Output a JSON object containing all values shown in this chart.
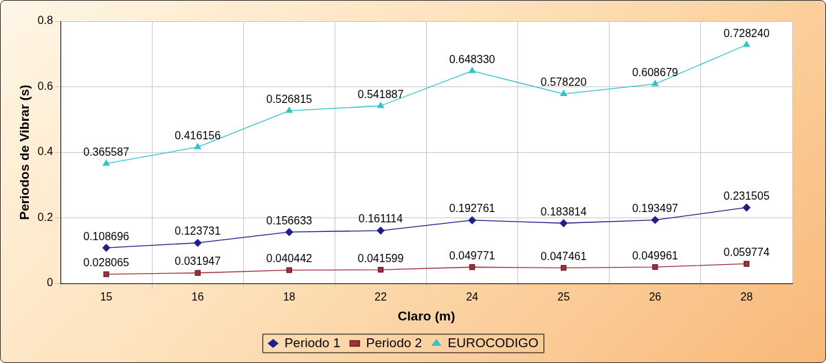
{
  "chart_data": {
    "type": "line",
    "xlabel": "Claro (m)",
    "ylabel": "Periodos de Vibrar (s)",
    "categories": [
      "15",
      "16",
      "18",
      "22",
      "24",
      "25",
      "26",
      "28"
    ],
    "series": [
      {
        "name": "Periodo 1",
        "color": "#1f1f8c",
        "marker": "diamond",
        "values": [
          0.108696,
          0.123731,
          0.156633,
          0.161114,
          0.192761,
          0.183814,
          0.193497,
          0.231505
        ]
      },
      {
        "name": "Periodo 2",
        "color": "#a0303c",
        "marker": "square",
        "values": [
          0.028065,
          0.031947,
          0.040442,
          0.041599,
          0.049771,
          0.047461,
          0.049961,
          0.059774
        ]
      },
      {
        "name": "EUROCODIGO",
        "color": "#33c4c8",
        "marker": "triangle",
        "values": [
          0.365587,
          0.416156,
          0.526815,
          0.541887,
          0.64833,
          0.57822,
          0.608679,
          0.72824
        ],
        "value_labels": [
          "0.365587",
          "0.416156",
          "0.526815",
          "0.541887",
          "0.648330",
          "0.578220",
          "0.608679",
          "0.728240"
        ]
      }
    ],
    "ylim": [
      0,
      0.8
    ],
    "yticks": [
      0,
      0.2,
      0.4,
      0.6,
      0.8
    ],
    "grid": true,
    "legend": "bottom",
    "data_labels": true
  }
}
